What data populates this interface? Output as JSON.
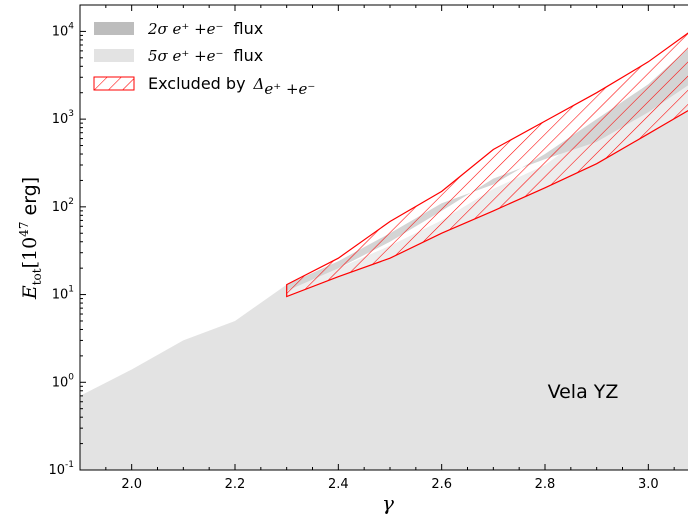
{
  "chart_data": {
    "type": "area",
    "xlabel": "γ",
    "ylabel": "E_tot [10^47 erg]",
    "ylabel_parts": {
      "symbol": "E",
      "subscript": "tot",
      "unit_pre": "[10",
      "unit_exp": "47",
      "unit_post": " erg]"
    },
    "xlim": [
      1.9,
      3.1
    ],
    "ylim": [
      0.1,
      20000
    ],
    "y_scale": "log",
    "x_ticks": [
      2.0,
      2.2,
      2.4,
      2.6,
      2.8,
      3.0
    ],
    "x_tick_labels": [
      "2.0",
      "2.2",
      "2.4",
      "2.6",
      "2.8",
      "3.0"
    ],
    "y_ticks": [
      0.1,
      1,
      10,
      100,
      1000,
      10000
    ],
    "y_tick_labels": [
      {
        "base": "10",
        "exp": "-1"
      },
      {
        "base": "10",
        "exp": "0"
      },
      {
        "base": "10",
        "exp": "1"
      },
      {
        "base": "10",
        "exp": "2"
      },
      {
        "base": "10",
        "exp": "3"
      },
      {
        "base": "10",
        "exp": "4"
      }
    ],
    "grid": false,
    "legend_placement": "top-left",
    "annotation": "Vela YZ",
    "series": [
      {
        "name": "2σ e⁺+e⁻ flux",
        "label_math": "2σ e⁺ +e⁻",
        "label_text": "flux",
        "color": "#bdbdbd",
        "x": [
          2.3,
          2.4,
          2.5,
          2.6,
          2.7,
          2.8,
          2.9,
          3.0,
          3.1
        ],
        "y_low": [
          11,
          20,
          40,
          90,
          210,
          350,
          550,
          1200,
          3000
        ],
        "y_high": [
          13,
          24,
          50,
          110,
          180,
          400,
          1000,
          2500,
          8500
        ]
      },
      {
        "name": "5σ e⁺+e⁻ flux",
        "label_math": "5σ e⁺ +e⁻",
        "label_text": "flux",
        "color": "#e3e3e3",
        "x": [
          1.9,
          2.0,
          2.1,
          2.2,
          2.3,
          2.4,
          2.5,
          2.6,
          2.7,
          2.8,
          2.9,
          3.0,
          3.1
        ],
        "y_low": [
          0.1,
          0.1,
          0.1,
          0.1,
          0.1,
          0.1,
          0.1,
          0.1,
          0.1,
          0.1,
          0.1,
          0.1,
          0.1
        ],
        "y_high": [
          0.7,
          1.4,
          3.0,
          5.0,
          13,
          20,
          36,
          70,
          160,
          300,
          800,
          2200,
          8000
        ]
      },
      {
        "name": "Excluded by Δ_{e⁺+e⁻}",
        "label_text": "Excluded by",
        "label_math": "Δ",
        "label_sub": "e⁺ +e⁻",
        "color": "#ff0000",
        "hatch": "diagonal",
        "x": [
          2.3,
          2.4,
          2.5,
          2.6,
          2.7,
          2.8,
          2.9,
          3.0,
          3.1
        ],
        "y_low": [
          9.5,
          16,
          26,
          50,
          90,
          165,
          310,
          680,
          1500
        ],
        "y_high": [
          13,
          26,
          68,
          150,
          450,
          950,
          2000,
          4500,
          12000
        ]
      }
    ]
  }
}
